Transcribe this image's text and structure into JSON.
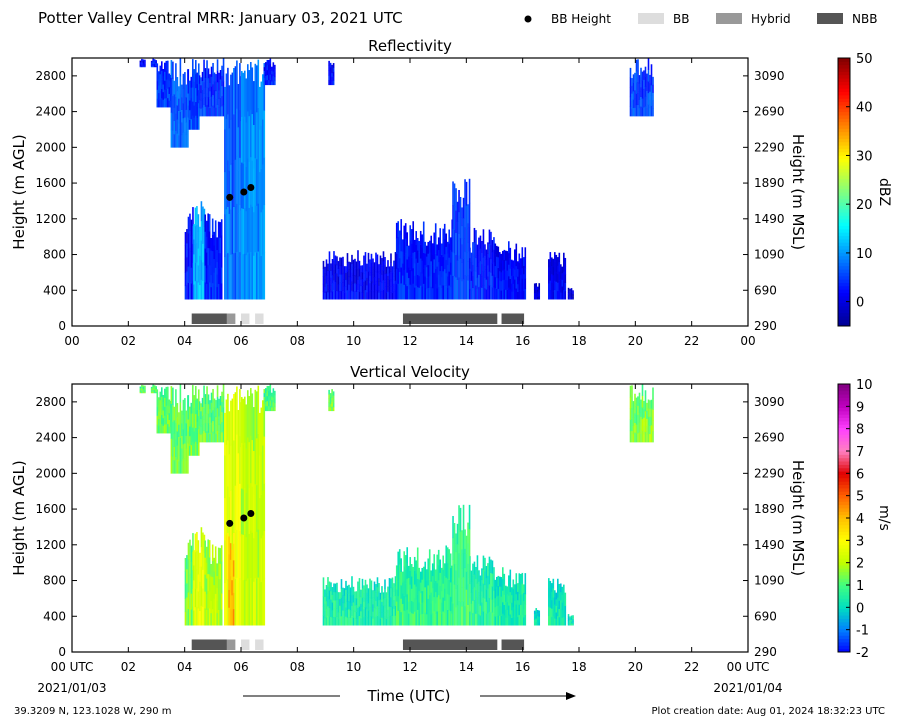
{
  "header": {
    "title": "Potter Valley Central MRR:  January 03, 2021 UTC",
    "legend": [
      {
        "label": "BB Height",
        "kind": "dot",
        "color": "#000000"
      },
      {
        "label": "BB",
        "kind": "swatch",
        "color": "#dddddd"
      },
      {
        "label": "Hybrid",
        "kind": "swatch",
        "color": "#999999"
      },
      {
        "label": "NBB",
        "kind": "swatch",
        "color": "#555555"
      }
    ]
  },
  "colors": {
    "bb": "#dddddd",
    "hybrid": "#999999",
    "nbb": "#555555",
    "bb_height_dot": "#000000"
  },
  "axes": {
    "x_ticks": [
      "00",
      "02",
      "04",
      "06",
      "08",
      "10",
      "12",
      "14",
      "16",
      "18",
      "20",
      "22",
      "00"
    ],
    "x_ticks_bottom": [
      "00 UTC",
      "02",
      "04",
      "06",
      "08",
      "10",
      "12",
      "14",
      "16",
      "18",
      "20",
      "22",
      "00 UTC"
    ],
    "xlim_hours": [
      0,
      24
    ],
    "y_left_label": "Height (m AGL)",
    "y_left_ticks": [
      0,
      400,
      800,
      1200,
      1600,
      2000,
      2400,
      2800
    ],
    "y_right_label": "Height (m MSL)",
    "y_right_ticks": [
      290,
      690,
      1090,
      1490,
      1890,
      2290,
      2690,
      3090
    ],
    "ylim_agl": [
      0,
      3000
    ],
    "date_start": "2021/01/03",
    "date_end": "2021/01/04",
    "x_label": "Time (UTC)"
  },
  "footer": {
    "location": "39.3209 N, 123.1028 W, 290 m",
    "created": "Plot creation date: Aug 01, 2024 18:32:23 UTC"
  },
  "chart_data": [
    {
      "type": "heatmap",
      "title": "Reflectivity",
      "colorbar_label": "dBZ",
      "colorbar_ticks": [
        0,
        10,
        20,
        30,
        40,
        50
      ],
      "clim": [
        -5,
        50
      ],
      "colormap": [
        "#00008f",
        "#0000ff",
        "#0080ff",
        "#00ffff",
        "#80ff80",
        "#ffff00",
        "#ff8000",
        "#ff0000",
        "#800000"
      ],
      "bb_height_points": [
        {
          "x": 5.6,
          "y": 1440
        },
        {
          "x": 6.1,
          "y": 1500
        },
        {
          "x": 6.35,
          "y": 1550
        }
      ],
      "bb_type_bars": [
        {
          "start": 4.25,
          "end": 5.5,
          "type": "nbb"
        },
        {
          "start": 5.5,
          "end": 5.8,
          "type": "hybrid"
        },
        {
          "start": 6.0,
          "end": 6.3,
          "type": "bb"
        },
        {
          "start": 6.5,
          "end": 6.8,
          "type": "bb"
        },
        {
          "start": 11.75,
          "end": 15.1,
          "type": "nbb"
        },
        {
          "start": 15.25,
          "end": 16.05,
          "type": "nbb"
        }
      ],
      "echo_regions": [
        {
          "t0": 2.4,
          "t1": 2.6,
          "base": 2900,
          "top": 3000,
          "v": 2
        },
        {
          "t0": 2.8,
          "t1": 3.0,
          "base": 2900,
          "top": 3000,
          "v": 4
        },
        {
          "t0": 3.0,
          "t1": 3.5,
          "base": 2450,
          "top": 3000,
          "v": 5
        },
        {
          "t0": 3.5,
          "t1": 4.1,
          "base": 2000,
          "top": 3000,
          "v": 8
        },
        {
          "t0": 4.1,
          "t1": 4.5,
          "base": 2200,
          "top": 3000,
          "v": 6
        },
        {
          "t0": 4.5,
          "t1": 5.4,
          "base": 2350,
          "top": 3000,
          "v": 5
        },
        {
          "t0": 5.4,
          "t1": 6.0,
          "base": 300,
          "top": 3000,
          "v": 8
        },
        {
          "t0": 6.0,
          "t1": 6.8,
          "base": 300,
          "top": 3000,
          "v": 10
        },
        {
          "t0": 6.8,
          "t1": 7.2,
          "base": 2700,
          "top": 3000,
          "v": 4
        },
        {
          "t0": 4.0,
          "t1": 4.3,
          "base": 300,
          "top": 1350,
          "v": 3
        },
        {
          "t0": 4.3,
          "t1": 4.7,
          "base": 300,
          "top": 1400,
          "v": 12
        },
        {
          "t0": 4.7,
          "t1": 5.3,
          "base": 300,
          "top": 1300,
          "v": 4
        },
        {
          "t0": 9.1,
          "t1": 9.3,
          "base": 2700,
          "top": 3000,
          "v": 3
        },
        {
          "t0": 8.9,
          "t1": 11.5,
          "base": 300,
          "top": 850,
          "v": 2
        },
        {
          "t0": 11.5,
          "t1": 13.5,
          "base": 300,
          "top": 1200,
          "v": 4
        },
        {
          "t0": 13.5,
          "t1": 14.1,
          "base": 300,
          "top": 1650,
          "v": 6
        },
        {
          "t0": 14.1,
          "t1": 15.0,
          "base": 300,
          "top": 1100,
          "v": 4
        },
        {
          "t0": 15.0,
          "t1": 16.1,
          "base": 300,
          "top": 950,
          "v": 3
        },
        {
          "t0": 16.4,
          "t1": 16.6,
          "base": 300,
          "top": 500,
          "v": 0
        },
        {
          "t0": 16.9,
          "t1": 17.5,
          "base": 300,
          "top": 850,
          "v": 2
        },
        {
          "t0": 17.6,
          "t1": 17.8,
          "base": 300,
          "top": 450,
          "v": 0
        },
        {
          "t0": 19.8,
          "t1": 20.6,
          "base": 2350,
          "top": 3000,
          "v": 6
        }
      ]
    },
    {
      "type": "heatmap",
      "title": "Vertical Velocity",
      "colorbar_label": "m/s",
      "colorbar_ticks": [
        -2,
        -1,
        0,
        1,
        2,
        3,
        4,
        5,
        6,
        7,
        8,
        9,
        10
      ],
      "clim": [
        -2,
        10
      ],
      "colormap": [
        "#0000ff",
        "#0080ff",
        "#00e0c0",
        "#40ff80",
        "#c0ff00",
        "#ffff00",
        "#ffc000",
        "#ff6000",
        "#e00000",
        "#ff80c0",
        "#ff40ff",
        "#c000c0",
        "#800080"
      ],
      "bb_height_points": [
        {
          "x": 5.6,
          "y": 1440
        },
        {
          "x": 6.1,
          "y": 1500
        },
        {
          "x": 6.35,
          "y": 1550
        }
      ],
      "bb_type_bars": [
        {
          "start": 4.25,
          "end": 5.5,
          "type": "nbb"
        },
        {
          "start": 5.5,
          "end": 5.8,
          "type": "hybrid"
        },
        {
          "start": 6.0,
          "end": 6.3,
          "type": "bb"
        },
        {
          "start": 6.5,
          "end": 6.8,
          "type": "bb"
        },
        {
          "start": 11.75,
          "end": 15.1,
          "type": "nbb"
        },
        {
          "start": 15.25,
          "end": 16.05,
          "type": "nbb"
        }
      ],
      "echo_regions": [
        {
          "t0": 2.4,
          "t1": 2.6,
          "base": 2900,
          "top": 3000,
          "v": 1.2
        },
        {
          "t0": 2.8,
          "t1": 3.0,
          "base": 2900,
          "top": 3000,
          "v": 1.3
        },
        {
          "t0": 3.0,
          "t1": 3.5,
          "base": 2450,
          "top": 3000,
          "v": 1.3
        },
        {
          "t0": 3.5,
          "t1": 4.1,
          "base": 2000,
          "top": 3000,
          "v": 1.5
        },
        {
          "t0": 4.1,
          "t1": 4.5,
          "base": 2200,
          "top": 3000,
          "v": 1.4
        },
        {
          "t0": 4.5,
          "t1": 5.4,
          "base": 2350,
          "top": 3000,
          "v": 1.3
        },
        {
          "t0": 5.4,
          "t1": 6.0,
          "base": 300,
          "top": 3000,
          "v": 2.8
        },
        {
          "t0": 6.0,
          "t1": 6.8,
          "base": 300,
          "top": 3000,
          "v": 2.2
        },
        {
          "t0": 6.8,
          "t1": 7.2,
          "base": 2700,
          "top": 3000,
          "v": 1.2
        },
        {
          "t0": 4.0,
          "t1": 4.3,
          "base": 300,
          "top": 1350,
          "v": 1.5
        },
        {
          "t0": 4.3,
          "t1": 4.7,
          "base": 300,
          "top": 1400,
          "v": 2.6
        },
        {
          "t0": 4.7,
          "t1": 5.3,
          "base": 300,
          "top": 1300,
          "v": 2.0
        },
        {
          "t0": 5.55,
          "t1": 5.75,
          "base": 300,
          "top": 1400,
          "v": 4.2
        },
        {
          "t0": 9.1,
          "t1": 9.3,
          "base": 2700,
          "top": 3000,
          "v": 1.5
        },
        {
          "t0": 8.9,
          "t1": 11.5,
          "base": 300,
          "top": 850,
          "v": 0.5
        },
        {
          "t0": 11.5,
          "t1": 13.5,
          "base": 300,
          "top": 1200,
          "v": 0.8
        },
        {
          "t0": 13.5,
          "t1": 14.1,
          "base": 300,
          "top": 1650,
          "v": 1.0
        },
        {
          "t0": 14.1,
          "t1": 15.0,
          "base": 300,
          "top": 1100,
          "v": 0.7
        },
        {
          "t0": 15.0,
          "t1": 16.1,
          "base": 300,
          "top": 950,
          "v": 0.5
        },
        {
          "t0": 16.4,
          "t1": 16.6,
          "base": 300,
          "top": 500,
          "v": 0.3
        },
        {
          "t0": 16.9,
          "t1": 17.5,
          "base": 300,
          "top": 850,
          "v": 0.4
        },
        {
          "t0": 17.6,
          "t1": 17.8,
          "base": 300,
          "top": 450,
          "v": 0.3
        },
        {
          "t0": 19.8,
          "t1": 20.6,
          "base": 2350,
          "top": 3000,
          "v": 1.6
        }
      ]
    }
  ]
}
